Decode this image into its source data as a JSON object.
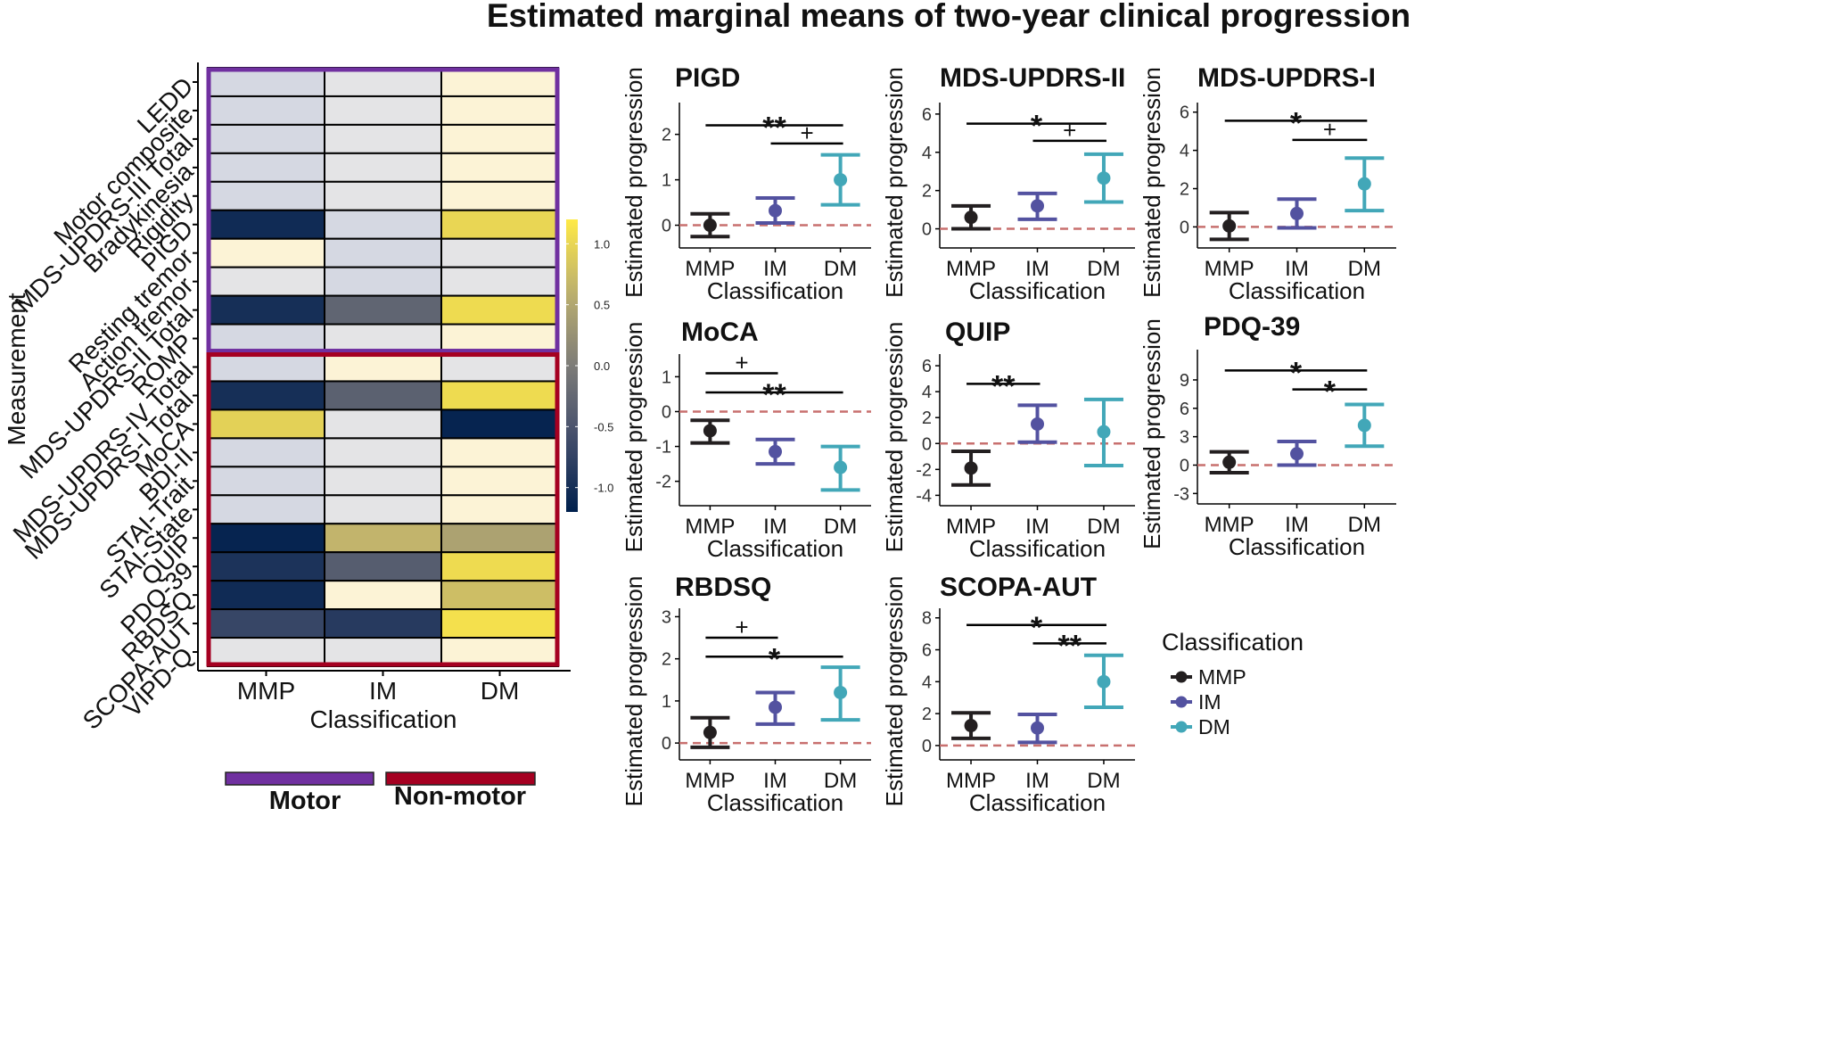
{
  "figure": {
    "title": "Estimated marginal means of two-year clinical progression"
  },
  "colors": {
    "MMP": "#231f20",
    "IM": "#5352a0",
    "DM": "#42a7b8",
    "zero_line": "#c8706f",
    "motor": "#7030a0",
    "non_motor": "#a50021"
  },
  "chart_data": [
    {
      "type": "heatmap",
      "ylabel": "Measurement",
      "xlabel": "Classification",
      "columns": [
        "MMP",
        "IM",
        "DM"
      ],
      "rows": [
        "LEDD",
        "Motor composite",
        "MDS-UPDRS-III Total",
        "Bradykinesia",
        "Rigidity",
        "PIGD",
        "Resting tremor",
        "Action tremor",
        "MDS-UPDRS-II Total",
        "ROMP",
        "MDS-UPDRS-IV Total",
        "MDS-UPDRS-I Total",
        "MoCA",
        "BDI-II",
        "STAI-Trait",
        "STAI-State",
        "QUIP",
        "PDQ-39",
        "RBDSQ",
        "SCOPA-AUT",
        "VIPD-Q"
      ],
      "values": [
        [
          -0.15,
          -0.05,
          0.25
        ],
        [
          -0.2,
          -0.1,
          0.3
        ],
        [
          -0.2,
          -0.1,
          0.3
        ],
        [
          -0.2,
          -0.1,
          0.3
        ],
        [
          -0.2,
          -0.1,
          0.3
        ],
        [
          -1.05,
          -0.25,
          1.0
        ],
        [
          0.3,
          -0.15,
          -0.05
        ],
        [
          0.1,
          -0.15,
          0.1
        ],
        [
          -1.0,
          -0.3,
          1.05
        ],
        [
          -0.15,
          0.05,
          0.15
        ],
        [
          -0.15,
          0.2,
          0.05
        ],
        [
          -1.0,
          -0.35,
          1.05
        ],
        [
          0.95,
          -0.1,
          -1.15
        ],
        [
          -0.2,
          -0.05,
          0.25
        ],
        [
          -0.15,
          -0.1,
          0.25
        ],
        [
          -0.15,
          -0.05,
          0.25
        ],
        [
          -1.15,
          0.65,
          0.45
        ],
        [
          -0.95,
          -0.4,
          1.05
        ],
        [
          -1.05,
          0.3,
          0.75
        ],
        [
          -0.7,
          -0.85,
          1.1
        ],
        [
          -0.1,
          -0.05,
          0.2
        ]
      ],
      "colorbar": {
        "ticks": [
          1.0,
          0.5,
          0.0,
          -0.5,
          -1.0
        ],
        "tick_labels": [
          "1.0",
          "0.5",
          "0.0",
          "-0.5",
          "-1.0"
        ],
        "range": [
          -1.2,
          1.2
        ]
      },
      "groups": [
        {
          "name": "Motor",
          "rows": [
            0,
            9
          ]
        },
        {
          "name": "Non-motor",
          "rows": [
            10,
            20
          ]
        }
      ]
    },
    {
      "type": "errorbar",
      "title": "PIGD",
      "ylabel": "Estimated progression",
      "xlabel": "Classification",
      "categories": [
        "MMP",
        "IM",
        "DM"
      ],
      "mean": [
        0.0,
        0.32,
        1.0
      ],
      "lower": [
        -0.25,
        0.05,
        0.45
      ],
      "upper": [
        0.25,
        0.6,
        1.55
      ],
      "ylim": [
        -0.5,
        2.7
      ],
      "yticks": [
        0,
        1,
        2
      ],
      "brackets": [
        {
          "from": 0,
          "to": 2,
          "label": "**",
          "y": 2.2
        },
        {
          "from": 1,
          "to": 2,
          "label": "+",
          "y": 1.8
        }
      ]
    },
    {
      "type": "errorbar",
      "title": "MDS-UPDRS-II",
      "ylabel": "Estimated progression",
      "xlabel": "Classification",
      "categories": [
        "MMP",
        "IM",
        "DM"
      ],
      "mean": [
        0.6,
        1.2,
        2.65
      ],
      "lower": [
        0.0,
        0.5,
        1.4
      ],
      "upper": [
        1.2,
        1.85,
        3.9
      ],
      "ylim": [
        -1.0,
        6.6
      ],
      "yticks": [
        0,
        2,
        4,
        6
      ],
      "brackets": [
        {
          "from": 0,
          "to": 2,
          "label": "*",
          "y": 5.5
        },
        {
          "from": 1,
          "to": 2,
          "label": "+",
          "y": 4.6
        }
      ]
    },
    {
      "type": "errorbar",
      "title": "MDS-UPDRS-I",
      "ylabel": "Estimated progression",
      "xlabel": "Classification",
      "categories": [
        "MMP",
        "IM",
        "DM"
      ],
      "mean": [
        0.05,
        0.7,
        2.25
      ],
      "lower": [
        -0.65,
        -0.05,
        0.85
      ],
      "upper": [
        0.75,
        1.45,
        3.6
      ],
      "ylim": [
        -1.1,
        6.5
      ],
      "yticks": [
        0,
        2,
        4,
        6
      ],
      "brackets": [
        {
          "from": 0,
          "to": 2,
          "label": "*",
          "y": 5.55
        },
        {
          "from": 1,
          "to": 2,
          "label": "+",
          "y": 4.55
        }
      ]
    },
    {
      "type": "errorbar",
      "title": "MoCA",
      "ylabel": "Estimated progression",
      "xlabel": "Classification",
      "categories": [
        "MMP",
        "IM",
        "DM"
      ],
      "mean": [
        -0.55,
        -1.15,
        -1.6
      ],
      "lower": [
        -0.9,
        -1.5,
        -2.25
      ],
      "upper": [
        -0.25,
        -0.8,
        -1.0
      ],
      "ylim": [
        -2.7,
        1.65
      ],
      "yticks": [
        -2,
        -1,
        0,
        1
      ],
      "brackets": [
        {
          "from": 0,
          "to": 1,
          "label": "+",
          "y": 1.1
        },
        {
          "from": 0,
          "to": 2,
          "label": "**",
          "y": 0.55
        }
      ]
    },
    {
      "type": "errorbar",
      "title": "QUIP",
      "ylabel": "Estimated progression",
      "xlabel": "Classification",
      "categories": [
        "MMP",
        "IM",
        "DM"
      ],
      "mean": [
        -1.9,
        1.5,
        0.9
      ],
      "lower": [
        -3.2,
        0.1,
        -1.7
      ],
      "upper": [
        -0.6,
        2.95,
        3.4
      ],
      "ylim": [
        -4.8,
        6.9
      ],
      "yticks": [
        -4,
        -2,
        0,
        2,
        4,
        6
      ],
      "brackets": [
        {
          "from": 0,
          "to": 1,
          "label": "**",
          "y": 4.6
        }
      ]
    },
    {
      "type": "errorbar",
      "title": "PDQ-39",
      "ylabel": "Estimated progression",
      "xlabel": "Classification",
      "categories": [
        "MMP",
        "IM",
        "DM"
      ],
      "mean": [
        0.3,
        1.2,
        4.2
      ],
      "lower": [
        -0.8,
        0.0,
        2.0
      ],
      "upper": [
        1.4,
        2.5,
        6.4
      ],
      "ylim": [
        -4.1,
        12.2
      ],
      "yticks": [
        -3,
        0,
        3,
        6,
        9
      ],
      "brackets": [
        {
          "from": 0,
          "to": 2,
          "label": "*",
          "y": 10.0
        },
        {
          "from": 1,
          "to": 2,
          "label": "*",
          "y": 8.0
        }
      ]
    },
    {
      "type": "errorbar",
      "title": "RBDSQ",
      "ylabel": "Estimated progression",
      "xlabel": "Classification",
      "categories": [
        "MMP",
        "IM",
        "DM"
      ],
      "mean": [
        0.25,
        0.85,
        1.2
      ],
      "lower": [
        -0.1,
        0.45,
        0.55
      ],
      "upper": [
        0.6,
        1.2,
        1.8
      ],
      "ylim": [
        -0.4,
        3.2
      ],
      "yticks": [
        0,
        1,
        2,
        3
      ],
      "brackets": [
        {
          "from": 0,
          "to": 1,
          "label": "+",
          "y": 2.5
        },
        {
          "from": 0,
          "to": 2,
          "label": "*",
          "y": 2.05
        }
      ]
    },
    {
      "type": "errorbar",
      "title": "SCOPA-AUT",
      "ylabel": "Estimated progression",
      "xlabel": "Classification",
      "categories": [
        "MMP",
        "IM",
        "DM"
      ],
      "mean": [
        1.25,
        1.1,
        4.0
      ],
      "lower": [
        0.45,
        0.2,
        2.4
      ],
      "upper": [
        2.05,
        1.95,
        5.65
      ],
      "ylim": [
        -0.9,
        8.6
      ],
      "yticks": [
        0,
        2,
        4,
        6,
        8
      ],
      "brackets": [
        {
          "from": 0,
          "to": 2,
          "label": "*",
          "y": 7.55
        },
        {
          "from": 1,
          "to": 2,
          "label": "**",
          "y": 6.4
        }
      ]
    }
  ],
  "legend": {
    "title": "Classification",
    "items": [
      "MMP",
      "IM",
      "DM"
    ]
  }
}
